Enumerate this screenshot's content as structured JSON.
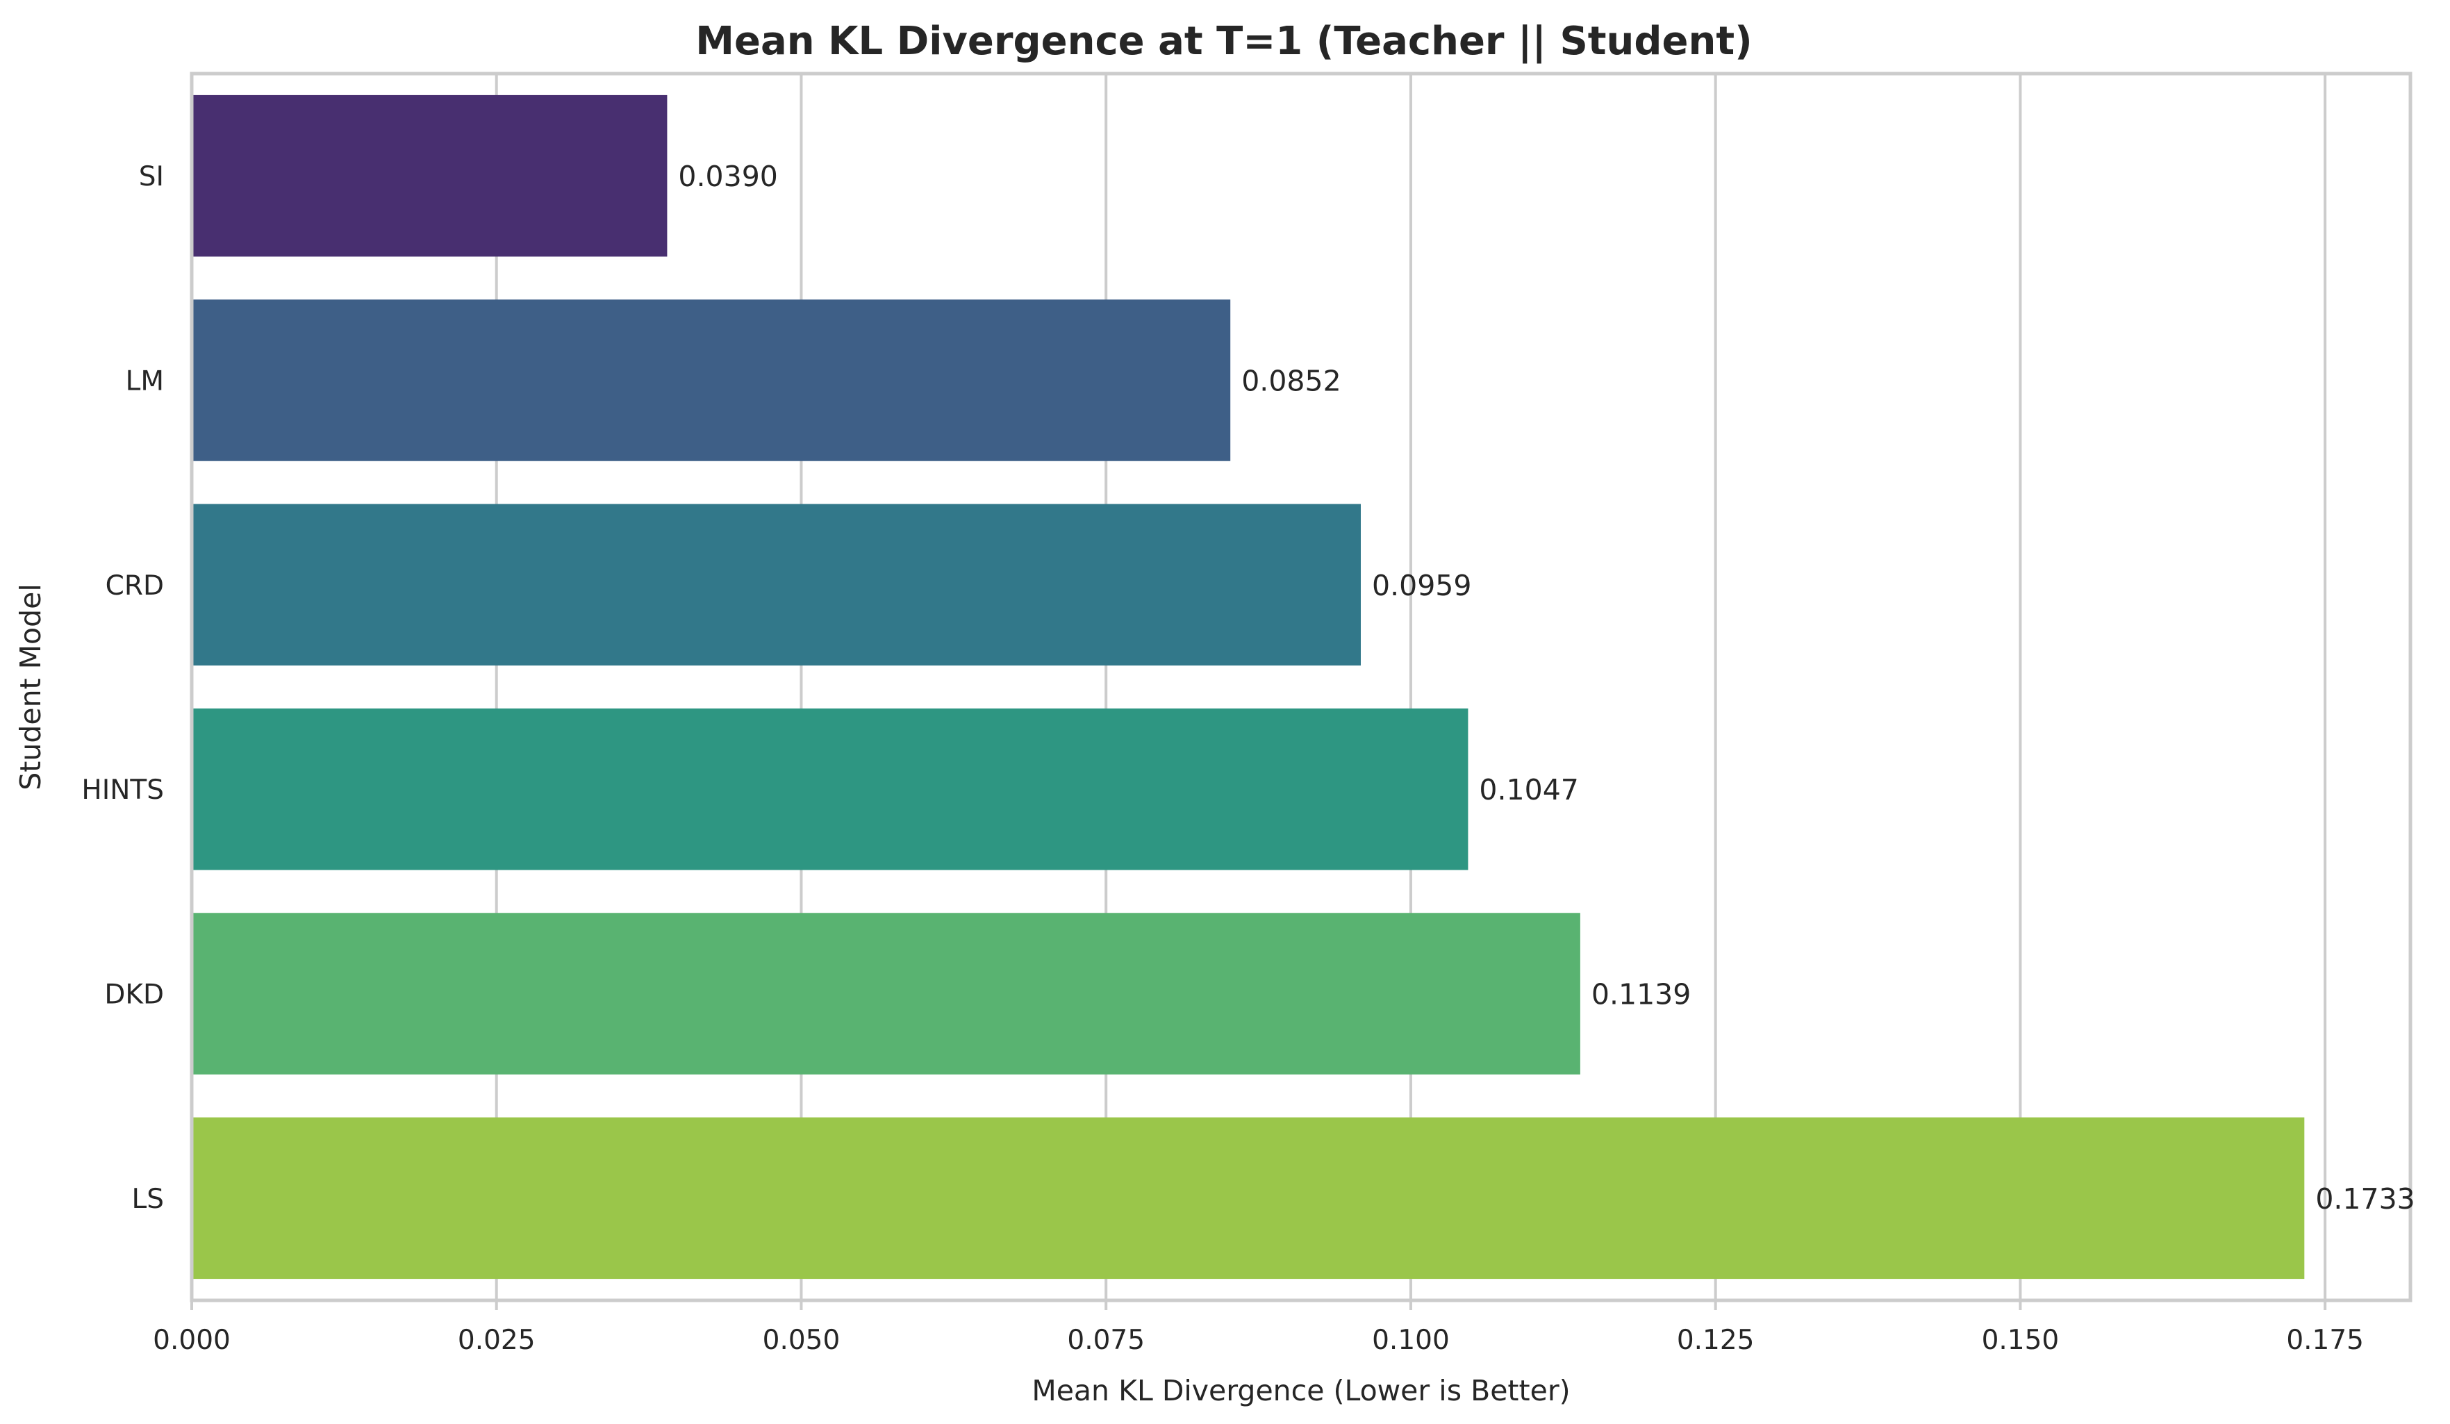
{
  "chart_data": {
    "type": "bar",
    "orientation": "horizontal",
    "title": "Mean KL Divergence at T=1 (Teacher || Student)",
    "xlabel": "Mean KL Divergence (Lower is Better)",
    "ylabel": "Student Model",
    "categories": [
      "SI",
      "LM",
      "CRD",
      "HINTS",
      "DKD",
      "LS"
    ],
    "values": [
      0.039,
      0.0852,
      0.0959,
      0.1047,
      0.1139,
      0.1733
    ],
    "value_labels": [
      "0.0390",
      "0.0852",
      "0.0959",
      "0.1047",
      "0.1139",
      "0.1733"
    ],
    "colors": [
      "#482f70",
      "#3e5f87",
      "#32788a",
      "#2e9682",
      "#59b371",
      "#9ac64a"
    ],
    "xlim": [
      0,
      0.182
    ],
    "xticks": [
      0.0,
      0.025,
      0.05,
      0.075,
      0.1,
      0.125,
      0.15,
      0.175
    ],
    "xtick_labels": [
      "0.000",
      "0.025",
      "0.050",
      "0.075",
      "0.100",
      "0.125",
      "0.150",
      "0.175"
    ],
    "grid": "vertical",
    "legend": "none"
  }
}
